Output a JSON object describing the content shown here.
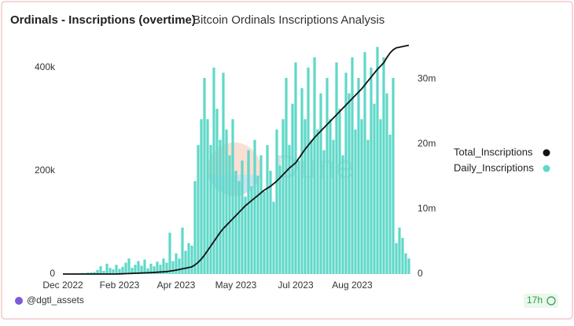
{
  "chart_data": {
    "type": "bar-line",
    "title": "Ordinals - Inscriptions (overtime)",
    "subtitle": "Bitcoin Ordinals Inscriptions Analysis",
    "watermark": "Dune",
    "categories": [
      "Dec 2022",
      null,
      null,
      null,
      null,
      null,
      null,
      null,
      null,
      null,
      null,
      null,
      null,
      null,
      null,
      null,
      null,
      null,
      "Feb 2023",
      null,
      null,
      null,
      null,
      null,
      null,
      null,
      null,
      null,
      null,
      null,
      null,
      null,
      null,
      null,
      null,
      null,
      "Apr 2023",
      null,
      null,
      null,
      null,
      null,
      null,
      null,
      null,
      null,
      null,
      null,
      null,
      null,
      null,
      null,
      null,
      null,
      null,
      "May 2023",
      null,
      null,
      null,
      null,
      null,
      null,
      null,
      null,
      null,
      null,
      null,
      null,
      null,
      null,
      null,
      null,
      null,
      null,
      "Jul 2023",
      null,
      null,
      null,
      null,
      null,
      null,
      null,
      null,
      null,
      null,
      null,
      null,
      null,
      null,
      null,
      null,
      null,
      "Aug 2023",
      null,
      null,
      null,
      null,
      null,
      null,
      null,
      null,
      null,
      null,
      null,
      null,
      null,
      null,
      null,
      null,
      null,
      null
    ],
    "ylim": [
      0,
      447000
    ],
    "yticks": [
      0,
      {
        "value": 200000,
        "label": "200k"
      },
      {
        "value": 400000,
        "label": "400k"
      }
    ],
    "y2lim": [
      0,
      35500000
    ],
    "y2ticks": [
      0,
      {
        "value": 10000000,
        "label": "10m"
      },
      {
        "value": 20000000,
        "label": "20m"
      },
      {
        "value": 30000000,
        "label": "30m"
      }
    ],
    "series": [
      {
        "name": "Total_Inscriptions",
        "color": "#111111",
        "kind": "line",
        "axis": "y2",
        "values": [
          0,
          0,
          0,
          0,
          0,
          0,
          0,
          0,
          0,
          0,
          0,
          0,
          0,
          0,
          0,
          0,
          0,
          0,
          20000,
          40000,
          60000,
          80000,
          100000,
          120000,
          140000,
          160000,
          180000,
          200000,
          220000,
          250000,
          280000,
          310000,
          340000,
          370000,
          450000,
          520000,
          600000,
          700000,
          800000,
          900000,
          1000000,
          1100000,
          1400000,
          1800000,
          2300000,
          2900000,
          3600000,
          4300000,
          5000000,
          5700000,
          6400000,
          7000000,
          7500000,
          8000000,
          8500000,
          9000000,
          9500000,
          10000000,
          10500000,
          10900000,
          11300000,
          11700000,
          12100000,
          12500000,
          12900000,
          13200000,
          13500000,
          13900000,
          14300000,
          14800000,
          15300000,
          15800000,
          16300000,
          16700000,
          17100000,
          17800000,
          18500000,
          19200000,
          19800000,
          20400000,
          21000000,
          21500000,
          22000000,
          22500000,
          23000000,
          23500000,
          24000000,
          24500000,
          25000000,
          25500000,
          26000000,
          26500000,
          27000000,
          27500000,
          28000000,
          28500000,
          29100000,
          29700000,
          30300000,
          30900000,
          31500000,
          32000000,
          32500000,
          33300000,
          34000000,
          34500000,
          34800000,
          34900000,
          35000000,
          35100000,
          35200000
        ]
      },
      {
        "name": "Daily_Inscriptions",
        "color": "#5fd8c9",
        "kind": "bar",
        "axis": "y",
        "values": [
          0,
          0,
          0,
          1000,
          1000,
          1000,
          2000,
          2000,
          3000,
          3000,
          4000,
          8000,
          15000,
          6000,
          20000,
          12000,
          9000,
          18000,
          10000,
          14000,
          22000,
          30000,
          12000,
          18000,
          25000,
          16000,
          28000,
          11000,
          20000,
          15000,
          24000,
          18000,
          30000,
          22000,
          80000,
          25000,
          40000,
          30000,
          90000,
          45000,
          60000,
          55000,
          180000,
          250000,
          300000,
          380000,
          300000,
          250000,
          400000,
          320000,
          260000,
          390000,
          280000,
          230000,
          300000,
          200000,
          180000,
          220000,
          150000,
          240000,
          170000,
          260000,
          190000,
          230000,
          160000,
          250000,
          200000,
          140000,
          280000,
          210000,
          300000,
          380000,
          250000,
          330000,
          410000,
          220000,
          360000,
          300000,
          400000,
          260000,
          420000,
          280000,
          350000,
          240000,
          380000,
          300000,
          260000,
          410000,
          320000,
          230000,
          390000,
          350000,
          420000,
          280000,
          380000,
          300000,
          430000,
          260000,
          400000,
          330000,
          440000,
          300000,
          420000,
          350000,
          270000,
          380000,
          60000,
          90000,
          70000,
          40000,
          30000
        ]
      }
    ]
  },
  "footer": {
    "author": "@dgtl_assets",
    "age": "17h"
  }
}
